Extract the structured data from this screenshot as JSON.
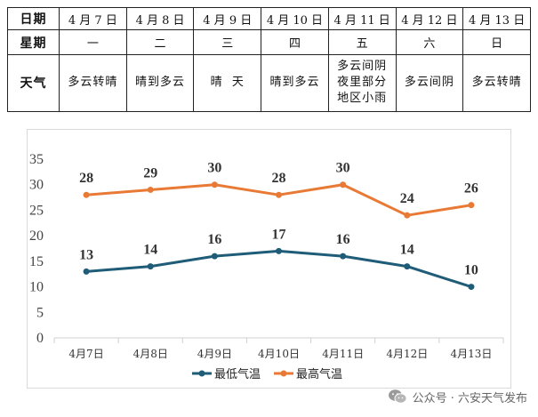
{
  "table": {
    "row1": [
      "日期",
      "4 月 7 日",
      "4 月 8 日",
      "4 月 9 日",
      "4 月 10 日",
      "4 月 11 日",
      "4 月 12 日",
      "4 月 13 日"
    ],
    "row2": [
      "星期",
      "一",
      "二",
      "三",
      "四",
      "五",
      "六",
      "日"
    ],
    "row3_head": "天气",
    "weather": [
      [
        "多云转晴"
      ],
      [
        "晴到多云"
      ],
      [
        "晴  天"
      ],
      [
        "晴到多云"
      ],
      [
        "多云间阴",
        "夜里部分",
        "地区小雨"
      ],
      [
        "多云间阴"
      ],
      [
        "多云转晴"
      ]
    ]
  },
  "chart_data": {
    "type": "line",
    "categories": [
      "4月7日",
      "4月8日",
      "4月9日",
      "4月10日",
      "4月11日",
      "4月12日",
      "4月13日"
    ],
    "series": [
      {
        "name": "最低气温",
        "values": [
          13,
          14,
          16,
          17,
          16,
          14,
          10
        ],
        "color": "#1f5c78"
      },
      {
        "name": "最高气温",
        "values": [
          28,
          29,
          30,
          28,
          30,
          24,
          26
        ],
        "color": "#e87a35"
      }
    ],
    "ylim": [
      0,
      35
    ],
    "yticks": [
      0,
      5,
      10,
      15,
      20,
      25,
      30,
      35
    ],
    "grid": false,
    "legend": "bottom"
  },
  "watermark": {
    "text": "公众号 · 六安天气发布",
    "icon": "wechat-icon"
  }
}
